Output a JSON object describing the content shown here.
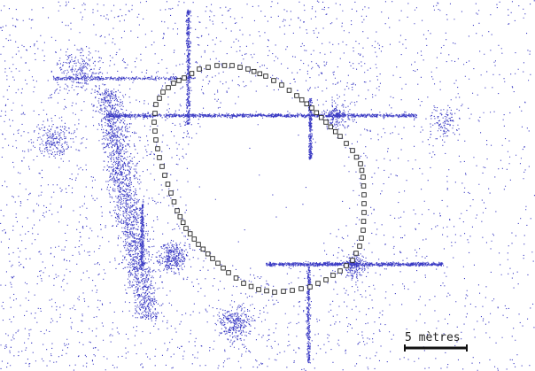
{
  "scale_bar": {
    "label": "5 mètres"
  },
  "colors": {
    "background": "#ffffff",
    "point_cloud": "#3b3bc4",
    "trajectory_marker_stroke": "#222222",
    "scale_bar": "#111111"
  }
}
